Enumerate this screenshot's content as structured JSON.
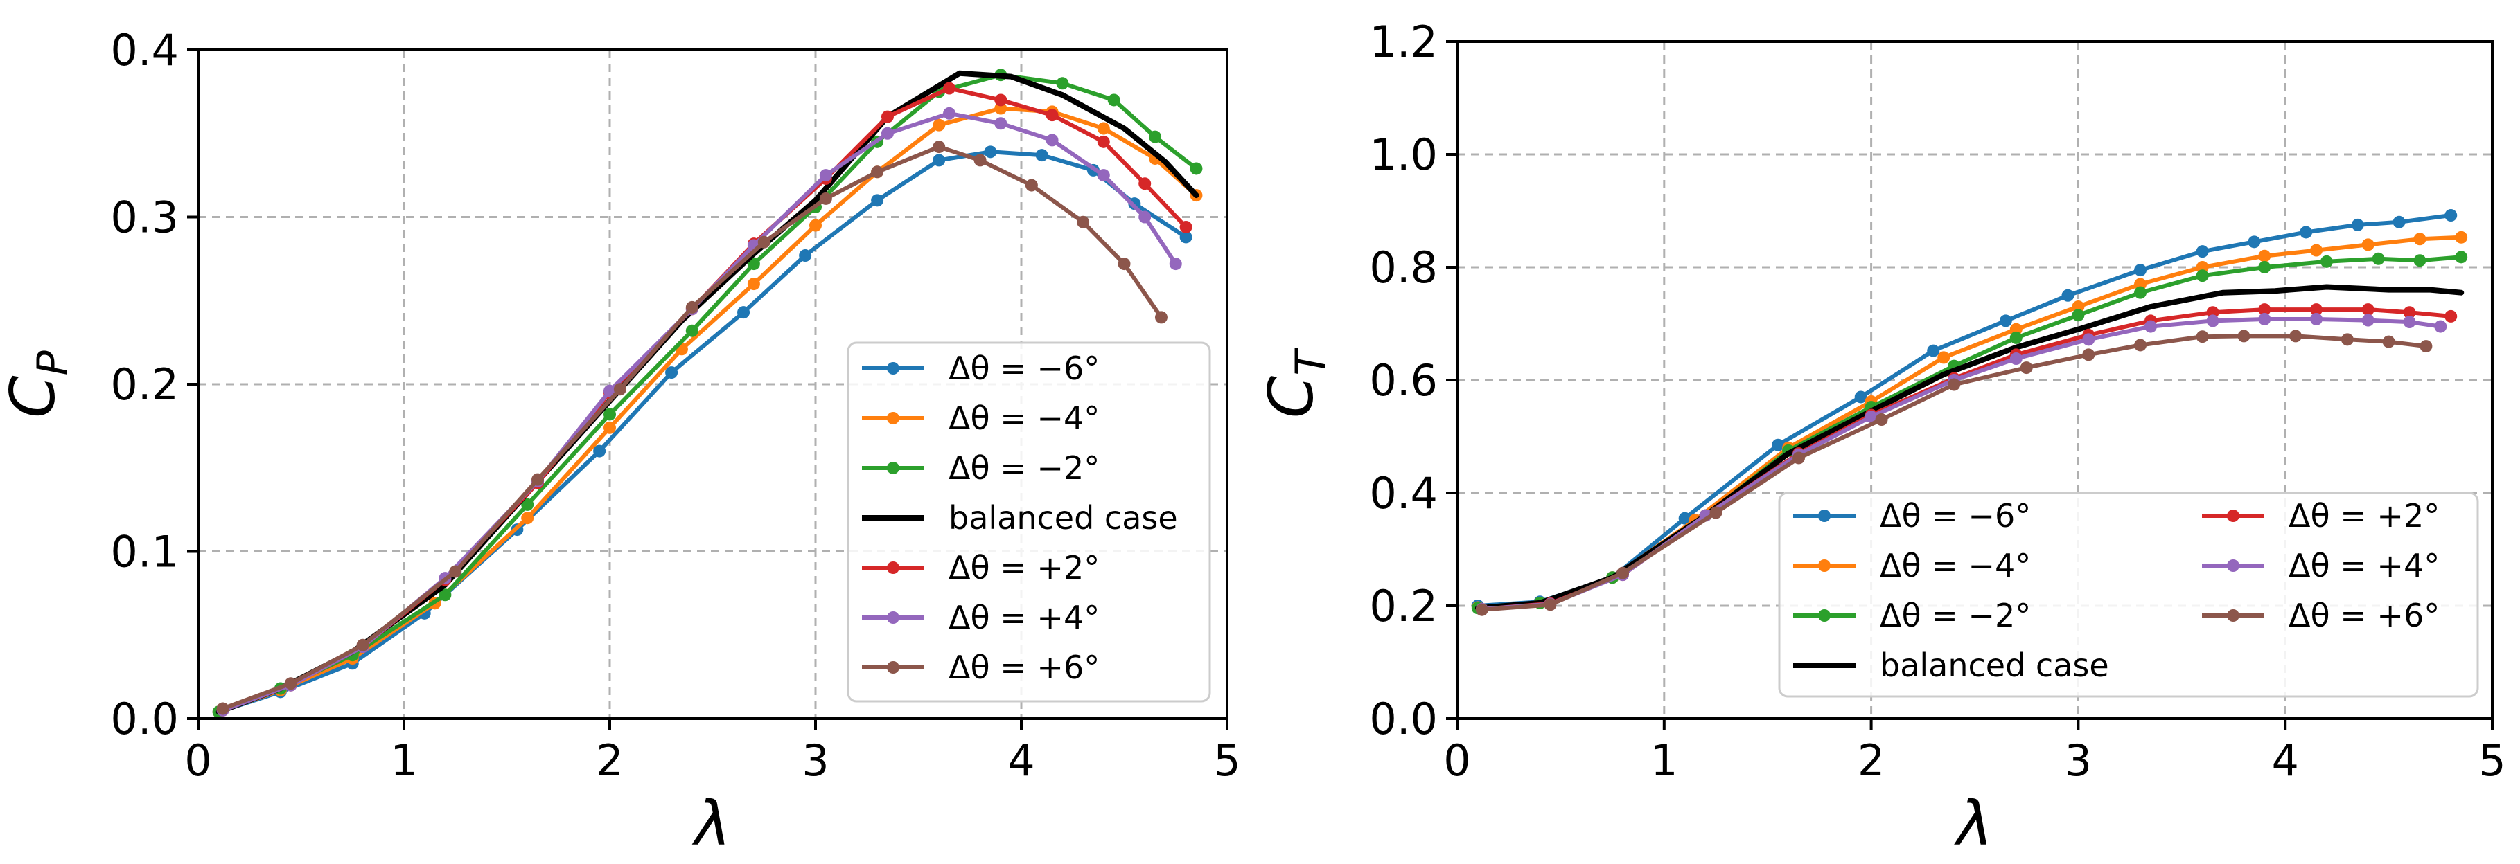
{
  "colors": {
    "blue": "#1f77b4",
    "orange": "#ff7f0e",
    "green": "#2ca02c",
    "black": "#000000",
    "red": "#d62728",
    "purple": "#9467bd",
    "brown": "#8c564b",
    "grid": "#b0b0b0"
  },
  "chart_data": [
    {
      "type": "line",
      "xlabel": "λ",
      "ylabel_main": "C",
      "ylabel_sub": "P",
      "xlim": [
        0,
        5
      ],
      "ylim": [
        0,
        0.4
      ],
      "xticks": [
        0,
        1,
        2,
        3,
        4,
        5
      ],
      "yticks": [
        0.0,
        0.1,
        0.2,
        0.3,
        0.4
      ],
      "xtick_labels": [
        "0",
        "1",
        "2",
        "3",
        "4",
        "5"
      ],
      "ytick_labels": [
        "0.0",
        "0.1",
        "0.2",
        "0.3",
        "0.4"
      ],
      "grid": true,
      "legend_location": "lower-right",
      "legend_columns": 1,
      "series": [
        {
          "name": "Δθ = −6°",
          "color": "#1f77b4",
          "markers": true,
          "x": [
            0.1,
            0.4,
            0.75,
            1.1,
            1.55,
            1.95,
            2.3,
            2.65,
            2.95,
            3.3,
            3.6,
            3.85,
            4.1,
            4.35,
            4.55,
            4.8
          ],
          "y": [
            0.004,
            0.016,
            0.033,
            0.063,
            0.113,
            0.16,
            0.207,
            0.243,
            0.277,
            0.31,
            0.334,
            0.339,
            0.337,
            0.328,
            0.308,
            0.288
          ]
        },
        {
          "name": "Δθ = −4°",
          "color": "#ff7f0e",
          "markers": true,
          "x": [
            0.1,
            0.4,
            0.75,
            1.15,
            1.6,
            2.0,
            2.35,
            2.7,
            3.0,
            3.3,
            3.6,
            3.9,
            4.15,
            4.4,
            4.65,
            4.85
          ],
          "y": [
            0.004,
            0.017,
            0.036,
            0.069,
            0.12,
            0.174,
            0.221,
            0.26,
            0.295,
            0.327,
            0.355,
            0.365,
            0.363,
            0.353,
            0.335,
            0.313
          ]
        },
        {
          "name": "Δθ = −2°",
          "color": "#2ca02c",
          "markers": true,
          "x": [
            0.1,
            0.4,
            0.75,
            1.2,
            1.6,
            2.0,
            2.4,
            2.7,
            3.0,
            3.3,
            3.6,
            3.9,
            4.2,
            4.45,
            4.65,
            4.85
          ],
          "y": [
            0.004,
            0.018,
            0.038,
            0.074,
            0.128,
            0.182,
            0.232,
            0.272,
            0.306,
            0.345,
            0.375,
            0.385,
            0.38,
            0.37,
            0.348,
            0.329
          ]
        },
        {
          "name": "balanced case",
          "color": "#000000",
          "markers": false,
          "x": [
            0.1,
            0.4,
            0.75,
            1.2,
            1.6,
            2.0,
            2.35,
            2.7,
            3.0,
            3.35,
            3.7,
            3.95,
            4.2,
            4.5,
            4.7,
            4.85
          ],
          "y": [
            0.004,
            0.018,
            0.04,
            0.08,
            0.135,
            0.19,
            0.238,
            0.278,
            0.31,
            0.36,
            0.386,
            0.384,
            0.373,
            0.353,
            0.333,
            0.313
          ]
        },
        {
          "name": "Δθ = +2°",
          "color": "#d62728",
          "markers": true,
          "x": [
            0.12,
            0.45,
            0.8,
            1.2,
            1.65,
            2.0,
            2.4,
            2.7,
            3.05,
            3.35,
            3.65,
            3.9,
            4.15,
            4.4,
            4.6,
            4.8
          ],
          "y": [
            0.005,
            0.02,
            0.043,
            0.083,
            0.141,
            0.195,
            0.245,
            0.284,
            0.323,
            0.36,
            0.377,
            0.37,
            0.361,
            0.345,
            0.32,
            0.294
          ]
        },
        {
          "name": "Δθ = +4°",
          "color": "#9467bd",
          "markers": true,
          "x": [
            0.12,
            0.45,
            0.8,
            1.2,
            1.65,
            2.0,
            2.4,
            2.7,
            3.05,
            3.35,
            3.65,
            3.9,
            4.15,
            4.4,
            4.6,
            4.75
          ],
          "y": [
            0.005,
            0.02,
            0.043,
            0.084,
            0.142,
            0.196,
            0.245,
            0.283,
            0.325,
            0.35,
            0.362,
            0.356,
            0.346,
            0.325,
            0.3,
            0.272
          ]
        },
        {
          "name": "Δθ = +6°",
          "color": "#8c564b",
          "markers": true,
          "x": [
            0.12,
            0.45,
            0.8,
            1.25,
            1.65,
            2.05,
            2.4,
            2.75,
            3.05,
            3.3,
            3.6,
            3.8,
            4.05,
            4.3,
            4.5,
            4.68
          ],
          "y": [
            0.006,
            0.021,
            0.044,
            0.088,
            0.143,
            0.197,
            0.246,
            0.285,
            0.311,
            0.327,
            0.342,
            0.334,
            0.319,
            0.297,
            0.272,
            0.24
          ]
        }
      ]
    },
    {
      "type": "line",
      "xlabel": "λ",
      "ylabel_main": "C",
      "ylabel_sub": "T",
      "xlim": [
        0,
        5
      ],
      "ylim": [
        0,
        1.2
      ],
      "xticks": [
        0,
        1,
        2,
        3,
        4,
        5
      ],
      "yticks": [
        0.0,
        0.2,
        0.4,
        0.6,
        0.8,
        1.0,
        1.2
      ],
      "xtick_labels": [
        "0",
        "1",
        "2",
        "3",
        "4",
        "5"
      ],
      "ytick_labels": [
        "0.0",
        "0.2",
        "0.4",
        "0.6",
        "0.8",
        "1.0",
        "1.2"
      ],
      "grid": true,
      "legend_location": "lower-right",
      "legend_columns": 2,
      "series": [
        {
          "name": "Δθ = −6°",
          "color": "#1f77b4",
          "markers": true,
          "x": [
            0.1,
            0.4,
            0.75,
            1.1,
            1.55,
            1.95,
            2.3,
            2.65,
            2.95,
            3.3,
            3.6,
            3.85,
            4.1,
            4.35,
            4.55,
            4.8
          ],
          "y": [
            0.2,
            0.207,
            0.25,
            0.355,
            0.485,
            0.57,
            0.652,
            0.705,
            0.75,
            0.795,
            0.828,
            0.845,
            0.862,
            0.875,
            0.88,
            0.892
          ]
        },
        {
          "name": "Δθ = −4°",
          "color": "#ff7f0e",
          "markers": true,
          "x": [
            0.1,
            0.4,
            0.75,
            1.15,
            1.6,
            2.0,
            2.35,
            2.7,
            3.0,
            3.3,
            3.6,
            3.9,
            4.15,
            4.4,
            4.65,
            4.85
          ],
          "y": [
            0.197,
            0.205,
            0.25,
            0.352,
            0.48,
            0.562,
            0.64,
            0.69,
            0.73,
            0.77,
            0.8,
            0.82,
            0.83,
            0.84,
            0.85,
            0.853
          ]
        },
        {
          "name": "Δθ = −2°",
          "color": "#2ca02c",
          "markers": true,
          "x": [
            0.1,
            0.4,
            0.75,
            1.2,
            1.6,
            2.0,
            2.4,
            2.7,
            3.0,
            3.3,
            3.6,
            3.9,
            4.2,
            4.45,
            4.65,
            4.85
          ],
          "y": [
            0.196,
            0.205,
            0.25,
            0.36,
            0.475,
            0.552,
            0.625,
            0.675,
            0.715,
            0.755,
            0.785,
            0.8,
            0.81,
            0.815,
            0.812,
            0.818
          ]
        },
        {
          "name": "balanced case",
          "color": "#000000",
          "markers": false,
          "x": [
            0.1,
            0.4,
            0.75,
            1.2,
            1.6,
            2.0,
            2.35,
            2.7,
            3.0,
            3.35,
            3.7,
            3.95,
            4.2,
            4.5,
            4.7,
            4.85
          ],
          "y": [
            0.196,
            0.205,
            0.25,
            0.36,
            0.47,
            0.545,
            0.61,
            0.658,
            0.69,
            0.73,
            0.755,
            0.758,
            0.765,
            0.76,
            0.76,
            0.755
          ]
        },
        {
          "name": "Δθ = +2°",
          "color": "#d62728",
          "markers": true,
          "x": [
            0.12,
            0.45,
            0.8,
            1.2,
            1.65,
            2.0,
            2.4,
            2.7,
            3.05,
            3.35,
            3.65,
            3.9,
            4.15,
            4.4,
            4.6,
            4.8
          ],
          "y": [
            0.194,
            0.204,
            0.255,
            0.36,
            0.47,
            0.538,
            0.603,
            0.645,
            0.68,
            0.705,
            0.72,
            0.725,
            0.725,
            0.725,
            0.72,
            0.713
          ]
        },
        {
          "name": "Δθ = +4°",
          "color": "#9467bd",
          "markers": true,
          "x": [
            0.12,
            0.45,
            0.8,
            1.2,
            1.65,
            2.0,
            2.4,
            2.7,
            3.05,
            3.35,
            3.65,
            3.9,
            4.15,
            4.4,
            4.6,
            4.75
          ],
          "y": [
            0.194,
            0.203,
            0.255,
            0.36,
            0.468,
            0.535,
            0.6,
            0.638,
            0.672,
            0.695,
            0.705,
            0.708,
            0.708,
            0.706,
            0.703,
            0.695
          ]
        },
        {
          "name": "Δθ = +6°",
          "color": "#8c564b",
          "markers": true,
          "x": [
            0.12,
            0.45,
            0.8,
            1.25,
            1.65,
            2.05,
            2.4,
            2.75,
            3.05,
            3.3,
            3.6,
            3.8,
            4.05,
            4.3,
            4.5,
            4.68
          ],
          "y": [
            0.193,
            0.202,
            0.258,
            0.365,
            0.462,
            0.53,
            0.592,
            0.622,
            0.645,
            0.662,
            0.677,
            0.678,
            0.678,
            0.672,
            0.668,
            0.66
          ]
        }
      ]
    }
  ]
}
